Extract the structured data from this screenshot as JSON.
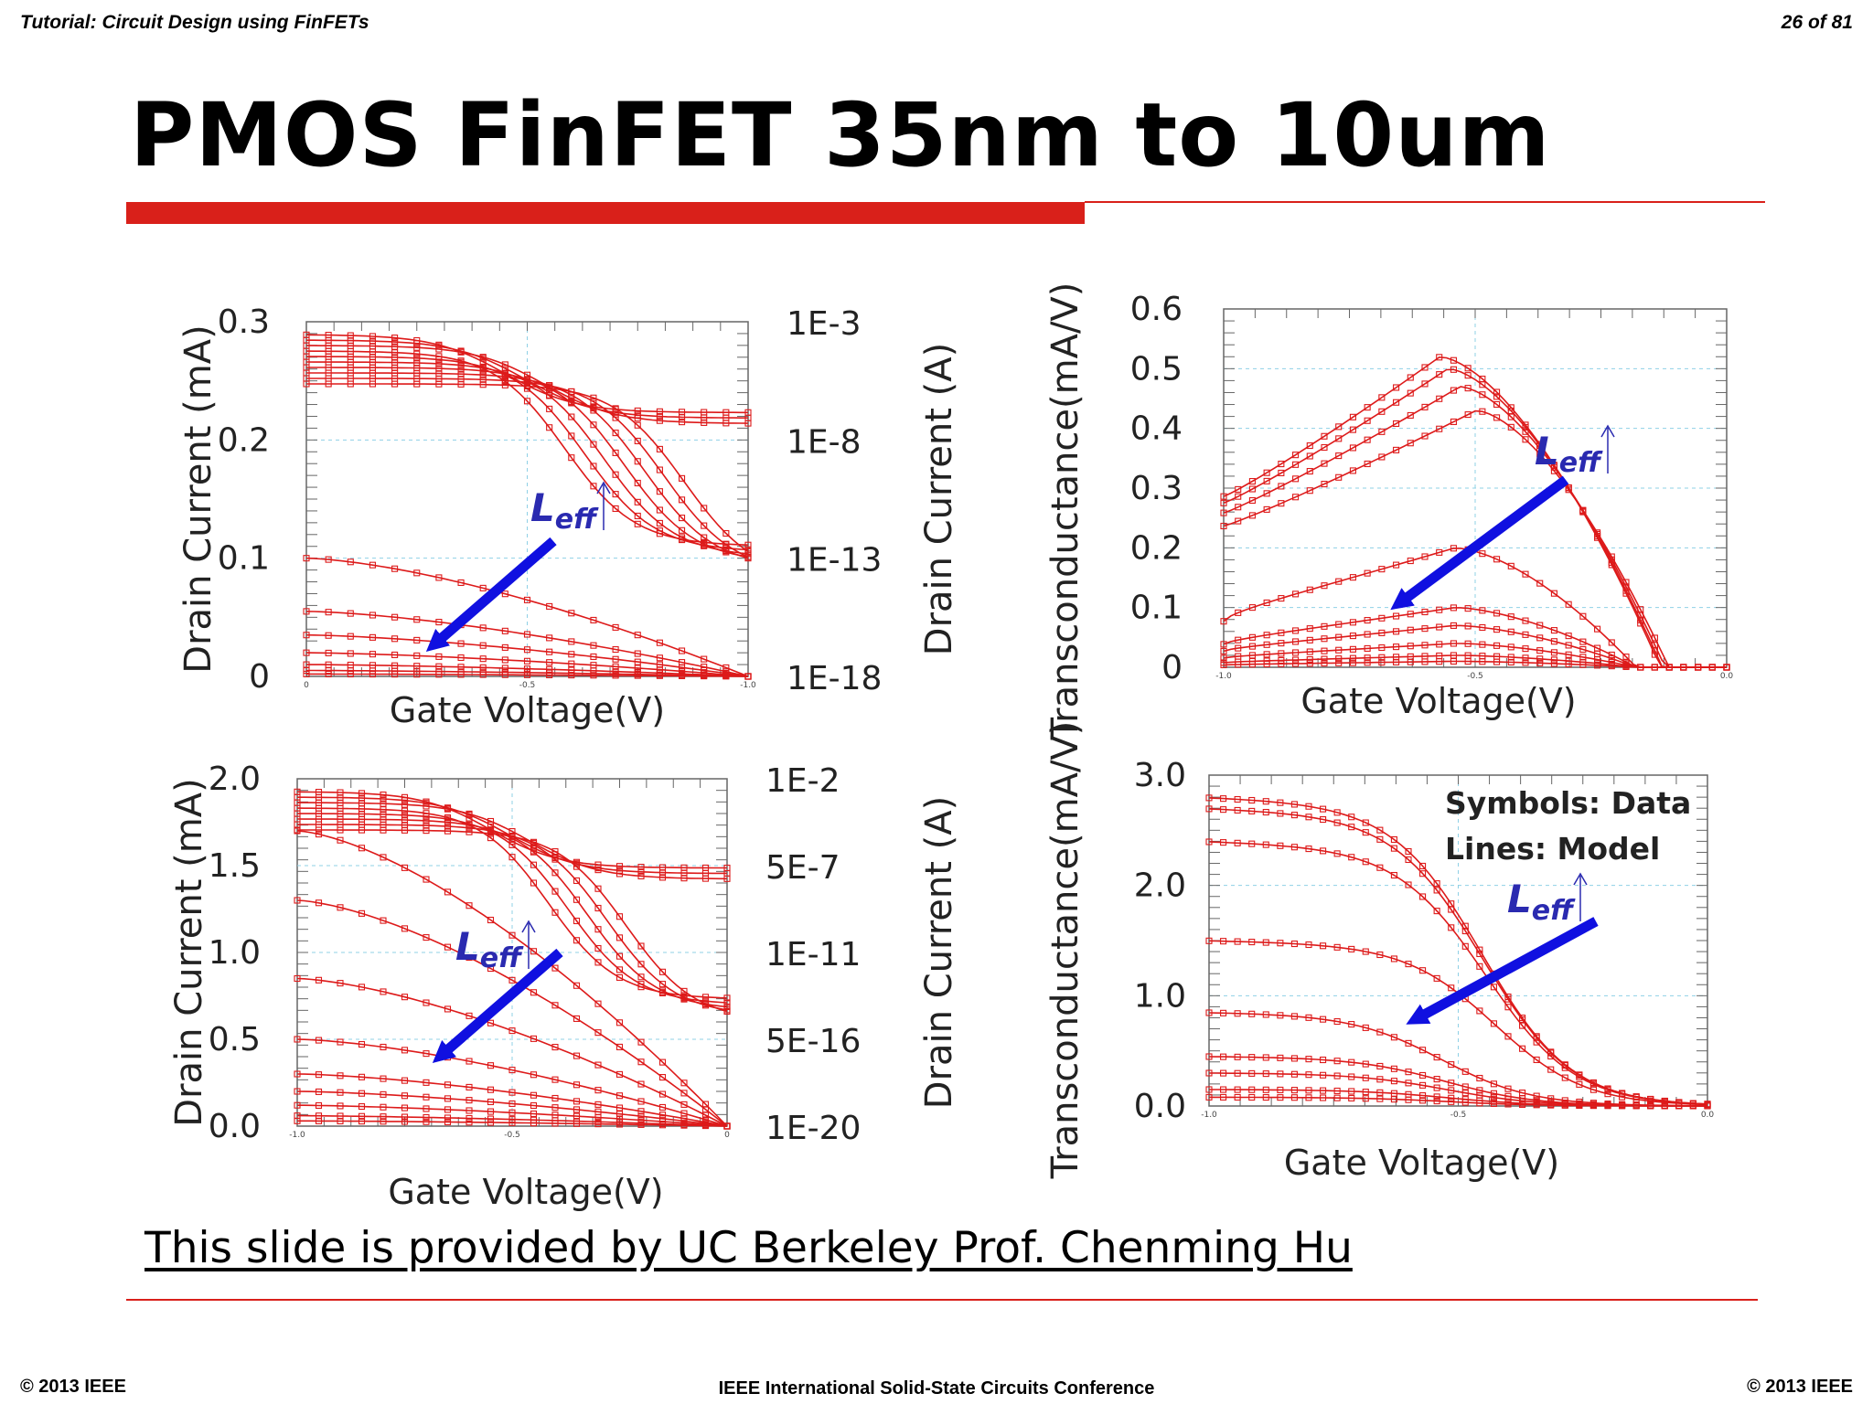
{
  "header": {
    "left": "Tutorial: Circuit Design using FinFETs",
    "right": "26 of 81"
  },
  "title": "PMOS FinFET 35nm to 10um",
  "credit": "This slide is provided by UC Berkeley Prof. Chenming Hu",
  "footer": {
    "left": "© 2013 IEEE",
    "center": "IEEE International Solid-State Circuits Conference",
    "right": "© 2013 IEEE"
  },
  "chart_data": [
    {
      "type": "line",
      "xlabel": "Gate Voltage(V)",
      "ylabel": "Drain Current (mA)",
      "y2label": "Drain Current (A)",
      "xticks": [
        "0",
        "-0.5",
        "-1.0"
      ],
      "yticks": [
        "0",
        "0.1",
        "0.2",
        "0.3"
      ],
      "y2ticks": [
        "1E-18",
        "1E-13",
        "1E-8",
        "1E-3"
      ],
      "ylim": [
        0,
        0.3
      ],
      "annotation": "Leff",
      "series_linear": [
        0.002,
        0.005,
        0.01,
        0.02,
        0.035,
        0.055,
        0.1
      ],
      "series_log_curves": 10
    },
    {
      "type": "line",
      "xlabel": "Gate Voltage(V)",
      "ylabel": "Transconductance(mA/V)",
      "xticks": [
        "-1.0",
        "-0.5",
        "0.0"
      ],
      "yticks": [
        "0",
        "0.1",
        "0.2",
        "0.3",
        "0.4",
        "0.5",
        "0.6"
      ],
      "ylim": [
        0,
        0.6
      ],
      "annotation": "Leff",
      "series_peaks": [
        0.52,
        0.5,
        0.47,
        0.43,
        0.2,
        0.1,
        0.07,
        0.04,
        0.02,
        0.01
      ]
    },
    {
      "type": "line",
      "xlabel": "Gate Voltage(V)",
      "ylabel": "Drain Current (mA)",
      "y2label": "Drain Current (A)",
      "xticks": [
        "-1.0",
        "-0.5",
        "0"
      ],
      "yticks": [
        "0.0",
        "0.5",
        "1.0",
        "1.5",
        "2.0"
      ],
      "y2ticks": [
        "1E-20",
        "5E-16",
        "1E-11",
        "5E-7",
        "1E-2"
      ],
      "ylim": [
        0,
        2.0
      ],
      "annotation": "Leff",
      "series_linear": [
        0.03,
        0.06,
        0.12,
        0.2,
        0.3,
        0.5,
        0.85,
        1.3,
        1.7
      ],
      "series_log_curves": 8
    },
    {
      "type": "line",
      "xlabel": "Gate Voltage(V)",
      "ylabel": "Transconductance(mA/V)",
      "xticks": [
        "-1.0",
        "-0.5",
        "0.0"
      ],
      "yticks": [
        "0.0",
        "1.0",
        "2.0",
        "3.0"
      ],
      "ylim": [
        0,
        3.0
      ],
      "annotation": "Leff",
      "legend_lines": [
        "Symbols: Data",
        "Lines: Model"
      ],
      "series_amplitudes": [
        2.8,
        2.7,
        2.4,
        1.5,
        0.85,
        0.45,
        0.3,
        0.15,
        0.08
      ]
    }
  ]
}
